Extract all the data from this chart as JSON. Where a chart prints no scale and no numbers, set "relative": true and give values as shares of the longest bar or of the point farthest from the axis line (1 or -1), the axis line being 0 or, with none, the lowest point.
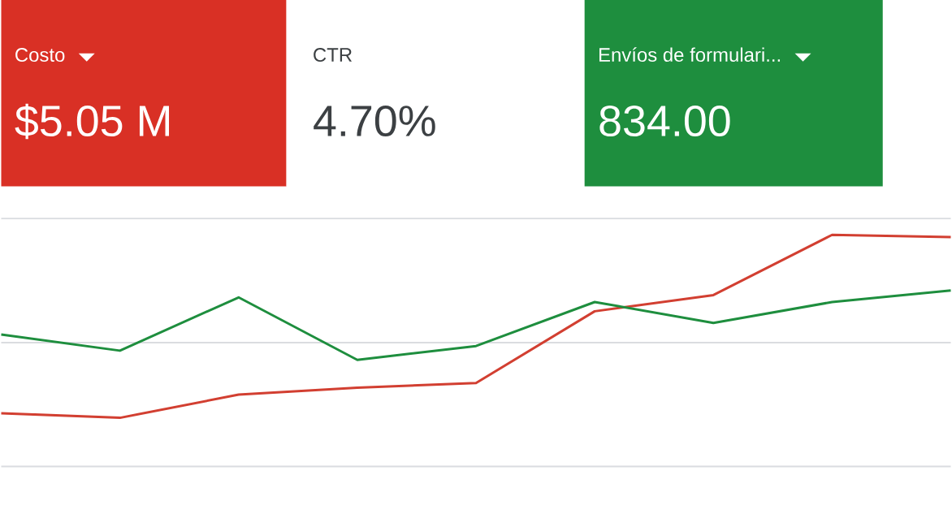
{
  "chart_data": [
    {
      "type": "other",
      "annotations": [
        "Costo",
        "$5.05 M",
        "CTR",
        "4.70%",
        "Envíos de formulari...",
        "834.00"
      ],
      "colors": [
        "#d93025",
        "#ffffff",
        "#1e8e3e"
      ]
    },
    {
      "type": "line",
      "relative": true,
      "ref_lines": [
        {
          "axis": "y",
          "value": 0.535,
          "color": "#dadce0"
        }
      ],
      "categories": [
        null,
        null,
        null,
        null,
        null,
        null,
        null,
        null,
        null
      ],
      "series": [
        {
          "color": "#d23f31",
          "values": [
            0.23,
            0.21,
            0.31,
            0.34,
            0.36,
            0.67,
            0.74,
            1.0,
            0.99
          ]
        },
        {
          "color": "#1e8e3e",
          "values": [
            0.57,
            0.5,
            0.73,
            0.46,
            0.52,
            0.71,
            0.62,
            0.71,
            0.76
          ]
        }
      ]
    }
  ]
}
